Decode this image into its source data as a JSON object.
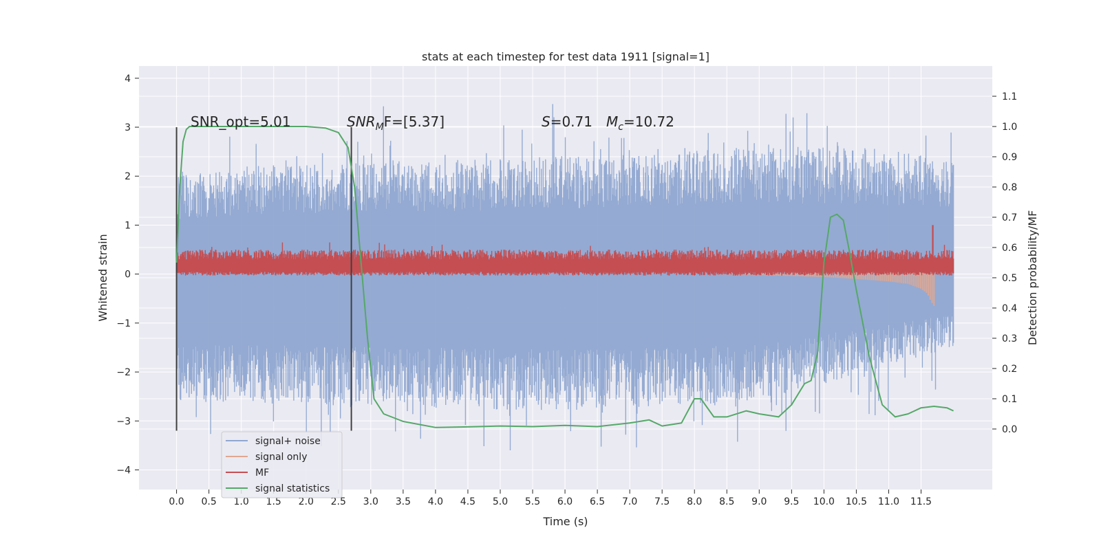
{
  "chart_data": {
    "type": "line",
    "title": "stats at each timestep for test data 1911 [signal=1]",
    "xlabel": "Time (s)",
    "ylabel_left": "Whitened strain",
    "ylabel_right": "Detection probability/MF",
    "xlim": [
      -0.58,
      12.6
    ],
    "ylim_left": [
      -4.4,
      4.25
    ],
    "ylim_right": [
      -0.2,
      1.2
    ],
    "grid": true,
    "xticks": [
      "0.0",
      "0.5",
      "1.0",
      "1.5",
      "2.0",
      "2.5",
      "3.0",
      "3.5",
      "4.0",
      "4.5",
      "5.0",
      "5.5",
      "6.0",
      "6.5",
      "7.0",
      "7.5",
      "8.0",
      "8.5",
      "9.0",
      "9.5",
      "10.0",
      "10.5",
      "11.0",
      "11.5"
    ],
    "yticks_left": [
      "4",
      "3",
      "2",
      "1",
      "0",
      "−1",
      "−2",
      "−3",
      "−4"
    ],
    "yticks_right": [
      "1.1",
      "1.0",
      "0.9",
      "0.8",
      "0.7",
      "0.6",
      "0.5",
      "0.4",
      "0.3",
      "0.2",
      "0.1",
      "0.0"
    ],
    "annotations": {
      "snr_opt": "SNR_opt=5.01",
      "snr_mf_main": "SNR",
      "snr_mf_sub": "M",
      "snr_mf_rest": "F=[5.37]",
      "s_main": "S",
      "s_rest": "=0.71",
      "mc_main": "M",
      "mc_sub": "c",
      "mc_rest": "=10.72"
    },
    "vlines_x": [
      0.0,
      2.7
    ],
    "legend_position": "lower-left",
    "colors": {
      "signal_noise": "#8fa6d0",
      "signal_only": "#e0a791",
      "mf": "#c44e52",
      "stats": "#55a868",
      "background": "#eaeaf2",
      "grid": "#ffffff",
      "vline": "#404040"
    },
    "series": [
      {
        "name": "signal+ noise",
        "axis": "left",
        "x_range": [
          0.0,
          12.0
        ],
        "y_range": [
          -3.6,
          3.9
        ],
        "envelope_top": [
          [
            0.0,
            2.0
          ],
          [
            1.0,
            2.2
          ],
          [
            3.0,
            2.3
          ],
          [
            6.0,
            2.4
          ],
          [
            9.0,
            2.6
          ],
          [
            10.5,
            2.6
          ],
          [
            12.0,
            2.4
          ]
        ],
        "envelope_bottom": [
          [
            0.0,
            -2.6
          ],
          [
            3.0,
            -2.7
          ],
          [
            6.0,
            -2.8
          ],
          [
            9.0,
            -2.6
          ],
          [
            12.0,
            -1.5
          ]
        ]
      },
      {
        "name": "signal only",
        "axis": "left",
        "x": [
          0.0,
          8.0,
          9.0,
          10.0,
          10.5,
          11.0,
          11.3,
          11.5,
          11.6,
          11.65,
          11.7
        ],
        "y_min": [
          0.0,
          0.0,
          -0.02,
          -0.06,
          -0.1,
          -0.15,
          -0.2,
          -0.3,
          -0.4,
          -0.55,
          -0.65
        ],
        "y_max": [
          0.0,
          0.0,
          0.02,
          0.04,
          0.06,
          0.08,
          0.1,
          0.12,
          0.15,
          0.18,
          0.2
        ]
      },
      {
        "name": "MF",
        "axis": "left",
        "x_range": [
          0.0,
          12.0
        ],
        "y_band": [
          0.05,
          0.5
        ],
        "y_range": [
          -0.05,
          1.0
        ]
      },
      {
        "name": "signal statistics",
        "axis": "right",
        "x": [
          0.0,
          0.05,
          0.1,
          0.15,
          0.2,
          0.5,
          1.0,
          1.5,
          2.0,
          2.3,
          2.5,
          2.65,
          2.75,
          2.85,
          2.95,
          3.05,
          3.2,
          3.5,
          4.0,
          4.5,
          5.0,
          5.5,
          6.0,
          6.5,
          7.0,
          7.3,
          7.5,
          7.8,
          8.0,
          8.1,
          8.3,
          8.5,
          8.8,
          9.0,
          9.3,
          9.5,
          9.7,
          9.8,
          9.9,
          10.0,
          10.1,
          10.2,
          10.3,
          10.4,
          10.5,
          10.7,
          10.9,
          11.1,
          11.3,
          11.5,
          11.7,
          11.9,
          12.0
        ],
        "y": [
          0.55,
          0.8,
          0.95,
          0.99,
          1.0,
          1.0,
          1.0,
          1.0,
          1.0,
          0.995,
          0.98,
          0.93,
          0.8,
          0.55,
          0.3,
          0.1,
          0.05,
          0.025,
          0.005,
          0.007,
          0.01,
          0.008,
          0.012,
          0.008,
          0.02,
          0.03,
          0.01,
          0.02,
          0.1,
          0.1,
          0.04,
          0.04,
          0.06,
          0.05,
          0.04,
          0.08,
          0.15,
          0.16,
          0.25,
          0.55,
          0.7,
          0.71,
          0.69,
          0.58,
          0.46,
          0.24,
          0.08,
          0.04,
          0.05,
          0.07,
          0.075,
          0.07,
          0.06
        ]
      }
    ]
  }
}
